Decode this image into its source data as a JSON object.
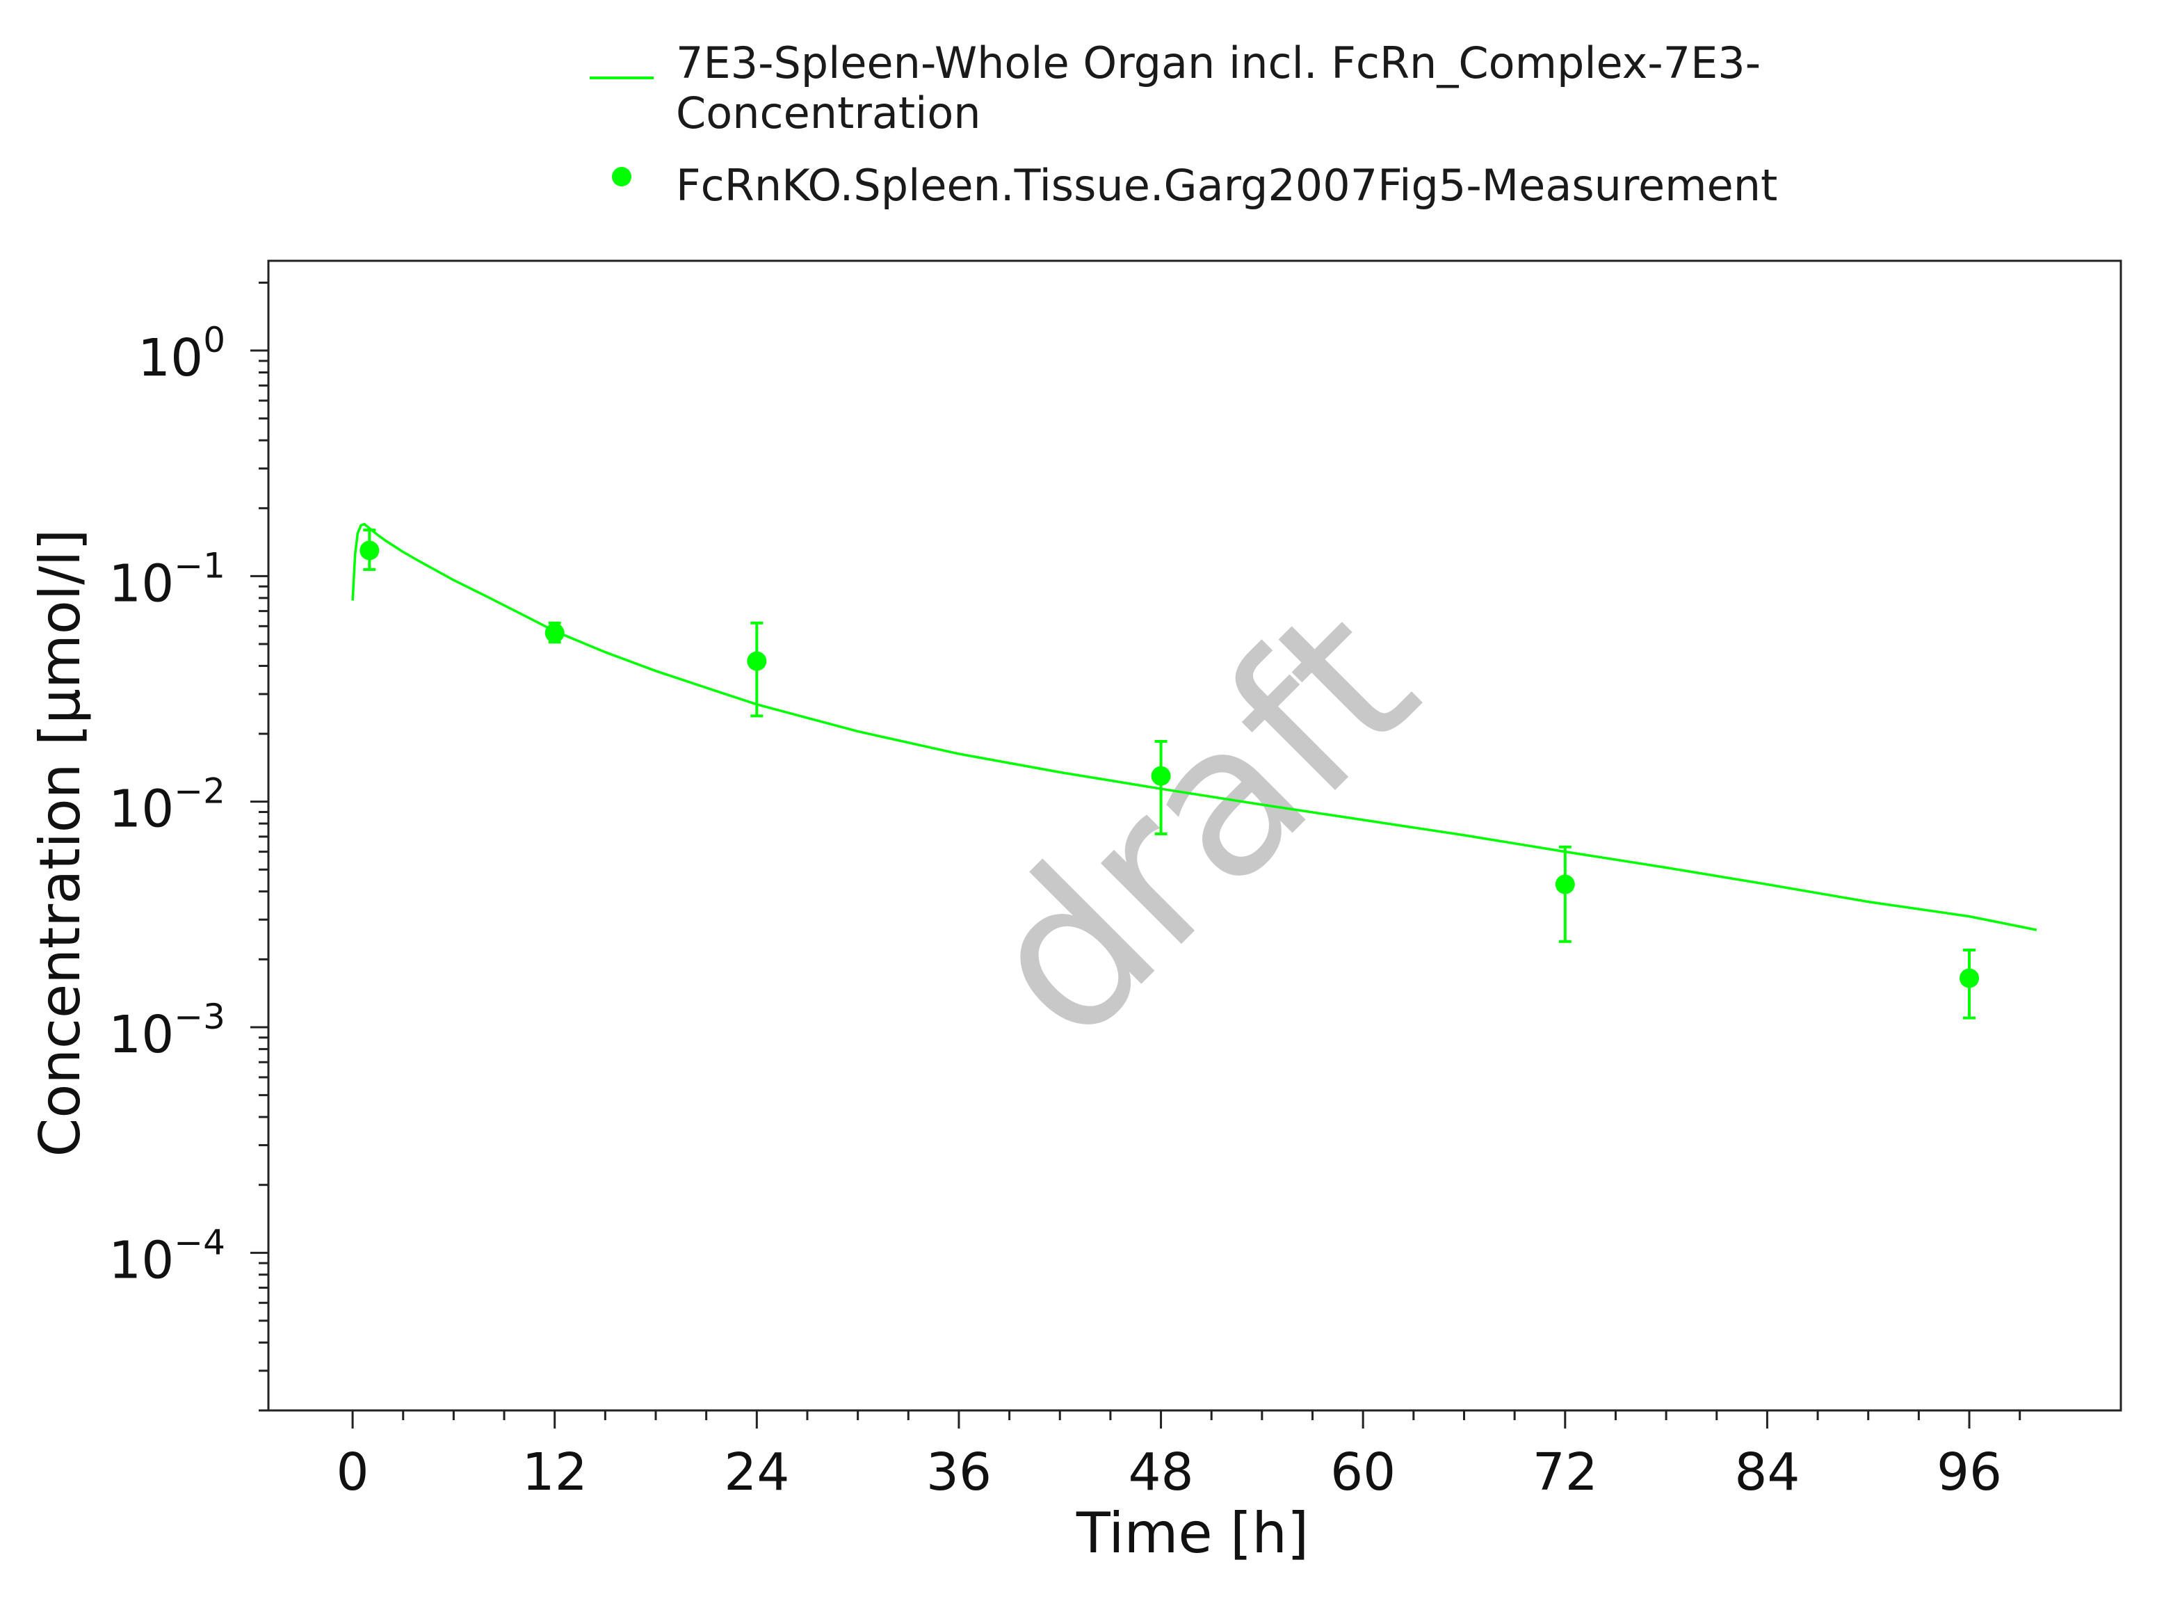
{
  "chart_data": {
    "type": "line",
    "title": "",
    "xlabel": "Time [h]",
    "ylabel": "Concentration [µmol/l]",
    "xlim": [
      -5,
      105
    ],
    "ylim": [
      2e-05,
      2.5
    ],
    "yscale": "log",
    "x_ticks": [
      0,
      12,
      24,
      36,
      48,
      60,
      72,
      84,
      96
    ],
    "x_tick_labels": [
      "0",
      "12",
      "24",
      "36",
      "48",
      "60",
      "72",
      "84",
      "96"
    ],
    "y_ticks": [
      1,
      0.1,
      0.01,
      0.001,
      0.0001
    ],
    "y_tick_labels": [
      {
        "base": "10",
        "exp": "0"
      },
      {
        "base": "10",
        "exp": "−1"
      },
      {
        "base": "10",
        "exp": "−2"
      },
      {
        "base": "10",
        "exp": "−3"
      },
      {
        "base": "10",
        "exp": "−4"
      }
    ],
    "grid": false,
    "legend_position": "top",
    "watermark": "draft",
    "series": [
      {
        "name": "7E3-Spleen-Whole Organ incl. FcRn_Complex-7E3-Concentration",
        "legend_lines": [
          "7E3-Spleen-Whole Organ incl. FcRn_Complex-7E3-",
          "Concentration"
        ],
        "kind": "line",
        "color": "#00ff00",
        "x": [
          0,
          0.15,
          0.3,
          0.5,
          0.7,
          1,
          1.5,
          2,
          3,
          4,
          6,
          8,
          10,
          12,
          15,
          18,
          21,
          24,
          30,
          36,
          42,
          48,
          54,
          60,
          66,
          72,
          78,
          84,
          90,
          96,
          100
        ],
        "y": [
          0.078,
          0.125,
          0.155,
          0.168,
          0.17,
          0.163,
          0.152,
          0.143,
          0.128,
          0.116,
          0.096,
          0.081,
          0.068,
          0.057,
          0.046,
          0.038,
          0.032,
          0.027,
          0.0205,
          0.0163,
          0.0135,
          0.0114,
          0.0097,
          0.0083,
          0.0071,
          0.006,
          0.0051,
          0.0043,
          0.0036,
          0.0031,
          0.0027
        ]
      },
      {
        "name": "FcRnKO.Spleen.Tissue.Garg2007Fig5-Measurement",
        "legend_lines": [
          "FcRnKO.Spleen.Tissue.Garg2007Fig5-Measurement"
        ],
        "kind": "scatter",
        "color": "#00ff00",
        "points": [
          {
            "x": 1,
            "y": 0.13,
            "y_low": 0.107,
            "y_high": 0.16
          },
          {
            "x": 12,
            "y": 0.056,
            "y_low": 0.051,
            "y_high": 0.062
          },
          {
            "x": 24,
            "y": 0.042,
            "y_low": 0.024,
            "y_high": 0.062
          },
          {
            "x": 48,
            "y": 0.013,
            "y_low": 0.0072,
            "y_high": 0.0185
          },
          {
            "x": 72,
            "y": 0.0043,
            "y_low": 0.0024,
            "y_high": 0.0063
          },
          {
            "x": 96,
            "y": 0.00165,
            "y_low": 0.0011,
            "y_high": 0.0022
          }
        ]
      }
    ]
  }
}
